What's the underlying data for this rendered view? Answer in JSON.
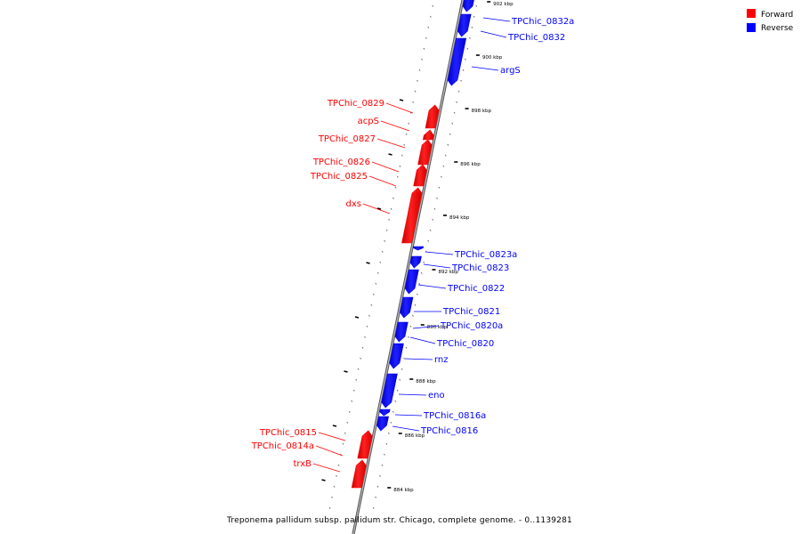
{
  "legend": {
    "items": [
      {
        "label": "Forward",
        "color": "#ff0000"
      },
      {
        "label": "Reverse",
        "color": "#0000ff"
      }
    ]
  },
  "caption": "Treponema pallidum subsp. pallidum str. Chicago, complete genome. - 0..1139281",
  "colors": {
    "forward": "#ff0000",
    "reverse": "#0000ff",
    "backbone": "#999999"
  },
  "ticks": [
    "902 kbp",
    "900 kbp",
    "898 kbp",
    "896 kbp",
    "894 kbp",
    "892 kbp",
    "890 kbp",
    "888 kbp",
    "886 kbp",
    "884 kbp"
  ],
  "genes": [
    {
      "name": "TPChic_0832a",
      "strand": "reverse"
    },
    {
      "name": "TPChic_0832",
      "strand": "reverse"
    },
    {
      "name": "argS",
      "strand": "reverse"
    },
    {
      "name": "TPChic_0829",
      "strand": "forward"
    },
    {
      "name": "acpS",
      "strand": "forward"
    },
    {
      "name": "TPChic_0827",
      "strand": "forward"
    },
    {
      "name": "TPChic_0826",
      "strand": "forward"
    },
    {
      "name": "TPChic_0825",
      "strand": "forward"
    },
    {
      "name": "dxs",
      "strand": "forward"
    },
    {
      "name": "TPChic_0823a",
      "strand": "reverse"
    },
    {
      "name": "TPChic_0823",
      "strand": "reverse"
    },
    {
      "name": "TPChic_0822",
      "strand": "reverse"
    },
    {
      "name": "TPChic_0821",
      "strand": "reverse"
    },
    {
      "name": "TPChic_0820a",
      "strand": "reverse"
    },
    {
      "name": "TPChic_0820",
      "strand": "reverse"
    },
    {
      "name": "rnz",
      "strand": "reverse"
    },
    {
      "name": "eno",
      "strand": "reverse"
    },
    {
      "name": "TPChic_0816a",
      "strand": "reverse"
    },
    {
      "name": "TPChic_0816",
      "strand": "reverse"
    },
    {
      "name": "TPChic_0815",
      "strand": "forward"
    },
    {
      "name": "TPChic_0814a",
      "strand": "forward"
    },
    {
      "name": "trxB",
      "strand": "forward"
    }
  ]
}
